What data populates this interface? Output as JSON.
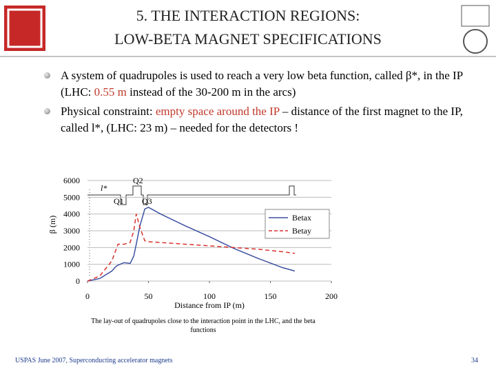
{
  "header": {
    "title_lines": [
      "5. THE INTERACTION REGIONS:",
      "LOW-BETA MAGNET SPECIFICATIONS"
    ]
  },
  "bullets": [
    [
      "A system of quadrupoles is used to reach a very low beta function, called β*, in the IP (LHC: ",
      "0.55 m",
      " instead of the 30-200 m in the arcs)"
    ],
    [
      "Physical constraint: ",
      "empty space around the IP",
      " – distance of the first magnet to the IP, called l*, (LHC: 23 m) – needed for the detectors !"
    ]
  ],
  "chart_data": {
    "type": "line",
    "x_label": "Distance  from IP (m)",
    "y_label": "β (m)",
    "x": [
      0,
      10,
      20,
      23,
      25,
      30,
      35,
      38,
      40,
      43,
      47,
      50,
      60,
      80,
      100,
      120,
      140,
      160,
      170
    ],
    "series": [
      {
        "name": "Betax",
        "color": "#3b4fa0",
        "dashed": false,
        "values": [
          0,
          150,
          600,
          850,
          950,
          1100,
          1050,
          1500,
          2200,
          3300,
          4300,
          4400,
          4000,
          3300,
          2650,
          1950,
          1350,
          800,
          600
        ]
      },
      {
        "name": "Betay",
        "color": "#d9302b",
        "dashed": true,
        "values": [
          0,
          300,
          1200,
          1800,
          2200,
          2200,
          2300,
          3000,
          4000,
          3200,
          2400,
          2350,
          2300,
          2200,
          2100,
          2000,
          1900,
          1750,
          1650
        ]
      }
    ],
    "xlim": [
      0,
      200
    ],
    "xticks": [
      0,
      50,
      100,
      150,
      200
    ],
    "ylim": [
      0,
      6000
    ],
    "yticks": [
      0,
      1000,
      2000,
      3000,
      4000,
      5000,
      6000
    ],
    "grid": true,
    "legend": "right",
    "annotations": [
      "l*",
      "Q2",
      "Q1",
      "Q3"
    ]
  },
  "caption": "The lay-out of quadrupoles close to the interaction point in the LHC, and the beta functions",
  "footer": {
    "left": "USPAS June 2007,  Superconducting accelerator magnets",
    "page": 34
  }
}
